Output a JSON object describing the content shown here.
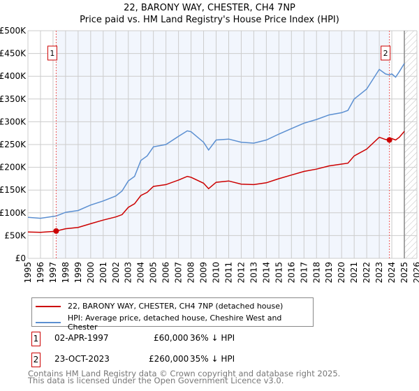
{
  "chart_data": {
    "type": "line",
    "title": "22, BARONY WAY, CHESTER, CH4 7NP",
    "subtitle": "Price paid vs. HM Land Registry's House Price Index (HPI)",
    "xlim": [
      1995,
      2026
    ],
    "ylim": [
      0,
      500000
    ],
    "grid": true,
    "x_ticks": [
      "1995",
      "1996",
      "1997",
      "1998",
      "1999",
      "2000",
      "2001",
      "2002",
      "2003",
      "2004",
      "2005",
      "2006",
      "2007",
      "2008",
      "2009",
      "2010",
      "2011",
      "2012",
      "2013",
      "2014",
      "2015",
      "2016",
      "2017",
      "2018",
      "2019",
      "2020",
      "2021",
      "2022",
      "2023",
      "2024",
      "2025",
      "2026"
    ],
    "y_ticks": [
      {
        "v": 0,
        "label": "£0"
      },
      {
        "v": 50000,
        "label": "£50K"
      },
      {
        "v": 100000,
        "label": "£100K"
      },
      {
        "v": 150000,
        "label": "£150K"
      },
      {
        "v": 200000,
        "label": "£200K"
      },
      {
        "v": 250000,
        "label": "£250K"
      },
      {
        "v": 300000,
        "label": "£300K"
      },
      {
        "v": 350000,
        "label": "£350K"
      },
      {
        "v": 400000,
        "label": "£400K"
      },
      {
        "v": 450000,
        "label": "£450K"
      },
      {
        "v": 500000,
        "label": "£500K"
      }
    ],
    "series": [
      {
        "name": "22, BARONY WAY, CHESTER, CH4 7NP (detached house)",
        "color": "#cc0000",
        "x": [
          1995,
          1996,
          1997,
          1997.25,
          1998,
          1999,
          2000,
          2001,
          2002,
          2002.5,
          2003,
          2003.5,
          2004,
          2004.5,
          2005,
          2006,
          2007,
          2007.7,
          2008,
          2009,
          2009.4,
          2010,
          2011,
          2012,
          2013,
          2014,
          2015,
          2016,
          2017,
          2018,
          2019,
          2020,
          2020.5,
          2021,
          2022,
          2023,
          2023.5,
          2023.8,
          2024,
          2024.3,
          2024.6,
          2025
        ],
        "y": [
          58000,
          57000,
          59000,
          60000,
          65000,
          68000,
          76000,
          84000,
          91000,
          96000,
          112000,
          120000,
          138000,
          145000,
          158000,
          162000,
          172000,
          180000,
          178000,
          165000,
          153000,
          167000,
          170000,
          163000,
          162000,
          166000,
          175000,
          183000,
          191000,
          196000,
          203000,
          207000,
          209000,
          225000,
          240000,
          266000,
          261000,
          260000,
          263000,
          260000,
          266000,
          279000
        ]
      },
      {
        "name": "HPI: Average price, detached house, Cheshire West and Chester",
        "color": "#5b8fd1",
        "x": [
          1995,
          1996,
          1997,
          1997.25,
          1998,
          1999,
          2000,
          2001,
          2002,
          2002.5,
          2003,
          2003.5,
          2004,
          2004.5,
          2005,
          2006,
          2007,
          2007.7,
          2008,
          2009,
          2009.4,
          2010,
          2011,
          2012,
          2013,
          2014,
          2015,
          2016,
          2017,
          2018,
          2019,
          2020,
          2020.5,
          2021,
          2022,
          2023,
          2023.5,
          2023.8,
          2024,
          2024.3,
          2024.6,
          2025
        ],
        "y": [
          90000,
          88000,
          92000,
          93000,
          101000,
          105000,
          117000,
          126000,
          137000,
          148000,
          170000,
          180000,
          215000,
          225000,
          245000,
          250000,
          268000,
          280000,
          278000,
          255000,
          238000,
          260000,
          262000,
          255000,
          253000,
          260000,
          273000,
          285000,
          297000,
          305000,
          315000,
          320000,
          325000,
          350000,
          372000,
          415000,
          405000,
          403000,
          405000,
          398000,
          410000,
          428000
        ]
      }
    ],
    "sales": [
      {
        "id": "1",
        "x": 1997.25,
        "y": 60000
      },
      {
        "id": "2",
        "x": 2023.81,
        "y": 260000
      }
    ],
    "legend_position": "bottom"
  },
  "transactions": [
    {
      "id": "1",
      "date": "02-APR-1997",
      "price": "£60,000",
      "hpi": "36% ↓ HPI"
    },
    {
      "id": "2",
      "date": "23-OCT-2023",
      "price": "£260,000",
      "hpi": "35% ↓ HPI"
    }
  ],
  "footer": {
    "line1": "Contains HM Land Registry data © Crown copyright and database right 2025.",
    "line2": "This data is licensed under the Open Government Licence v3.0."
  }
}
